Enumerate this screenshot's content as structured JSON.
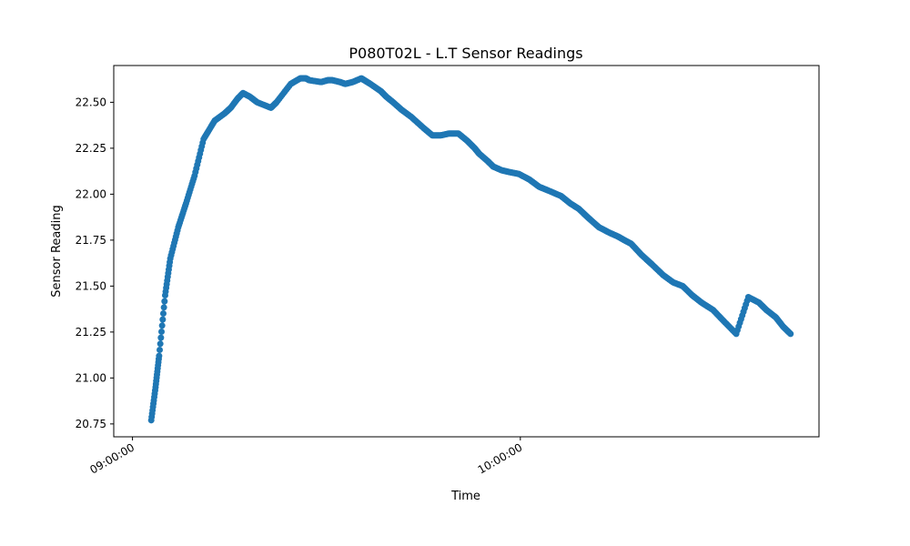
{
  "chart_data": {
    "type": "scatter",
    "title": "P080T02L - L.T Sensor Readings",
    "xlabel": "Time",
    "ylabel": "Sensor Reading",
    "x_ticks": [
      "09:00:00",
      "10:00:00"
    ],
    "y_ticks": [
      "20.75",
      "21.00",
      "21.25",
      "21.50",
      "21.75",
      "22.00",
      "22.25",
      "22.50"
    ],
    "xlim": [
      "08:57:06",
      "10:46:12"
    ],
    "ylim": [
      20.68,
      22.7
    ],
    "grid": false,
    "color": "#1f77b4",
    "series": [
      {
        "x": [
          "09:02:54",
          "09:03:34",
          "09:04:07",
          "09:05:03",
          "09:05:51",
          "09:07:05",
          "09:08:17",
          "09:09:36",
          "09:11:00",
          "09:12:43",
          "09:14:16",
          "09:15:12",
          "09:16:16",
          "09:17:06",
          "09:18:10",
          "09:19:17",
          "09:21:25",
          "09:22:17",
          "09:24:29",
          "09:25:57",
          "09:26:51",
          "09:27:21",
          "09:29:11",
          "09:30:12",
          "09:30:56",
          "09:32:06",
          "09:32:55",
          "09:34:04",
          "09:35:24",
          "09:35:52",
          "09:36:47",
          "09:38:26",
          "09:39:16",
          "09:40:19",
          "09:41:36",
          "09:43:08",
          "09:45:02",
          "09:46:23",
          "09:47:42",
          "09:48:58",
          "09:50:25",
          "09:51:48",
          "09:52:56",
          "09:53:38",
          "09:54:57",
          "09:55:49",
          "09:57:07",
          "09:58:20",
          "09:59:46",
          "10:01:23",
          "10:02:55",
          "10:04:19",
          "10:06:18",
          "10:07:43",
          "10:09:03",
          "10:10:33",
          "10:12:10",
          "10:13:48",
          "10:15:05",
          "10:16:05",
          "10:17:09",
          "10:18:44",
          "10:20:18",
          "10:22:05",
          "10:23:39",
          "10:25:07",
          "10:26:35",
          "10:28:02",
          "10:29:49",
          "10:31:27",
          "10:33:24",
          "10:35:16",
          "10:36:55",
          "10:38:04",
          "10:39:31",
          "10:40:38",
          "10:41:48"
        ],
        "y": [
          20.77,
          20.95,
          21.12,
          21.45,
          21.65,
          21.82,
          21.95,
          22.1,
          22.3,
          22.4,
          22.44,
          22.47,
          22.52,
          22.55,
          22.53,
          22.5,
          22.47,
          22.5,
          22.6,
          22.63,
          22.63,
          22.62,
          22.61,
          22.62,
          22.62,
          22.61,
          22.6,
          22.61,
          22.63,
          22.62,
          22.6,
          22.56,
          22.53,
          22.5,
          22.46,
          22.42,
          22.36,
          22.32,
          22.32,
          22.33,
          22.33,
          22.29,
          22.25,
          22.22,
          22.18,
          22.15,
          22.13,
          22.12,
          22.11,
          22.08,
          22.04,
          22.02,
          21.99,
          21.95,
          21.92,
          21.87,
          21.82,
          21.79,
          21.77,
          21.75,
          21.73,
          21.67,
          21.62,
          21.56,
          21.52,
          21.5,
          21.45,
          21.41,
          21.37,
          21.31,
          21.24,
          21.44,
          21.41,
          21.37,
          21.33,
          21.28,
          21.24
        ]
      }
    ]
  }
}
